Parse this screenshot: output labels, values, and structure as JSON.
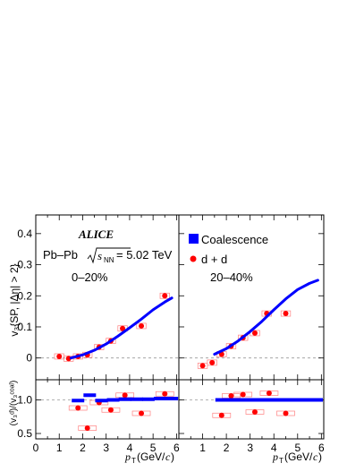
{
  "chart_data": [
    {
      "panel": "top-left",
      "type": "scatter",
      "ylabel": "v₃{SP, |Δη| > 2}",
      "ylim": [
        -0.07,
        0.46
      ],
      "xlim": [
        0,
        6.1
      ],
      "yticks": [
        0,
        0.1,
        0.2,
        0.3,
        0.4
      ],
      "ytick_labels": [
        "0",
        "0.1",
        "0.2",
        "0.3",
        "0.4"
      ],
      "experiment": "ALICE",
      "system": "Pb–Pb",
      "energy": "s",
      "energy_sub": "NN",
      "energy_value": " = 5.02 TeV",
      "centrality": "0–20%",
      "series": [
        {
          "name": "d + d",
          "x": [
            1.0,
            1.4,
            1.8,
            2.2,
            2.7,
            3.2,
            3.7,
            4.5,
            5.5
          ],
          "y": [
            0.005,
            -0.002,
            0.005,
            0.01,
            0.035,
            0.055,
            0.095,
            0.103,
            0.2
          ],
          "syst_halfwidth": 0.2
        },
        {
          "name": "Coalescence",
          "x": [
            1.5,
            2.0,
            2.5,
            3.0,
            3.5,
            4.0,
            4.5,
            5.0,
            5.5,
            5.8
          ],
          "y": [
            0.0,
            0.01,
            0.025,
            0.045,
            0.07,
            0.097,
            0.125,
            0.155,
            0.18,
            0.193
          ]
        }
      ]
    },
    {
      "panel": "top-right",
      "type": "scatter",
      "centrality": "20–40%",
      "ylim": [
        -0.07,
        0.46
      ],
      "xlim": [
        0,
        6.1
      ],
      "series": [
        {
          "name": "d + d",
          "x": [
            1.0,
            1.4,
            1.8,
            2.2,
            2.7,
            3.2,
            3.7,
            4.5
          ],
          "y": [
            -0.025,
            -0.015,
            0.012,
            0.038,
            0.065,
            0.08,
            0.143,
            0.143
          ],
          "syst_halfwidth": 0.2
        },
        {
          "name": "Coalescence",
          "x": [
            1.5,
            2.0,
            2.5,
            3.0,
            3.5,
            4.0,
            4.5,
            5.0,
            5.5,
            5.85
          ],
          "y": [
            0.012,
            0.03,
            0.055,
            0.085,
            0.118,
            0.155,
            0.19,
            0.22,
            0.24,
            0.25
          ]
        }
      ]
    },
    {
      "panel": "bottom-left",
      "type": "scatter",
      "ylabel": "(v₃ᵈ)/(v₃ᶜᵒᵃˡ)",
      "ylim": [
        0.42,
        1.3
      ],
      "yticks": [
        0.5,
        1.0
      ],
      "ytick_labels": [
        "0.5",
        "1.0"
      ],
      "xlim": [
        0,
        6.1
      ],
      "xticks": [
        0,
        1,
        2,
        3,
        4,
        5,
        6
      ],
      "xtick_labels": [
        "0",
        "1",
        "2",
        "3",
        "4",
        "5",
        "6"
      ],
      "xlabel": "p",
      "xlabel_sub": "T",
      "xlabel_rest": " (GeV/",
      "xlabel_c": "c",
      "xlabel_close": ")",
      "series": [
        {
          "name": "d + d",
          "x": [
            1.8,
            2.2,
            2.7,
            3.2,
            3.8,
            4.5,
            5.5
          ],
          "y": [
            0.88,
            0.58,
            0.96,
            0.85,
            1.07,
            0.8,
            1.09
          ]
        },
        {
          "name": "Coalescence",
          "x": [
            1.8,
            2.3,
            2.8,
            3.3,
            3.8,
            4.3,
            4.8,
            5.3,
            5.8
          ],
          "y": [
            0.99,
            1.07,
            0.99,
            1.0,
            1.01,
            1.01,
            1.01,
            1.02,
            1.02
          ]
        }
      ]
    },
    {
      "panel": "bottom-right",
      "type": "scatter",
      "ylim": [
        0.42,
        1.3
      ],
      "xlim": [
        0,
        6.1
      ],
      "xticks": [
        0,
        1,
        2,
        3,
        4,
        5,
        6
      ],
      "xtick_labels": [
        "0",
        "1",
        "2",
        "3",
        "4",
        "5",
        "6"
      ],
      "xlabel": "p",
      "xlabel_sub": "T",
      "xlabel_rest": " (GeV/",
      "xlabel_c": "c",
      "xlabel_close": ")",
      "series": [
        {
          "name": "d + d",
          "x": [
            1.8,
            2.2,
            2.7,
            3.2,
            3.8,
            4.5
          ],
          "y": [
            0.77,
            1.06,
            1.08,
            0.82,
            1.1,
            0.8
          ]
        },
        {
          "name": "Coalescence",
          "x": [
            1.8,
            2.3,
            2.8,
            3.3,
            3.8,
            4.3,
            4.8,
            5.3,
            5.8
          ],
          "y": [
            1.0,
            1.0,
            1.0,
            1.0,
            1.0,
            1.0,
            1.0,
            1.0,
            1.0
          ]
        }
      ]
    }
  ],
  "legend": {
    "coalescence": "Coalescence",
    "deuteron": "d + d"
  },
  "colors": {
    "data": "#ff0000",
    "model": "#0000ff",
    "syst_box": "#ff8080",
    "dashed": "#999999"
  }
}
